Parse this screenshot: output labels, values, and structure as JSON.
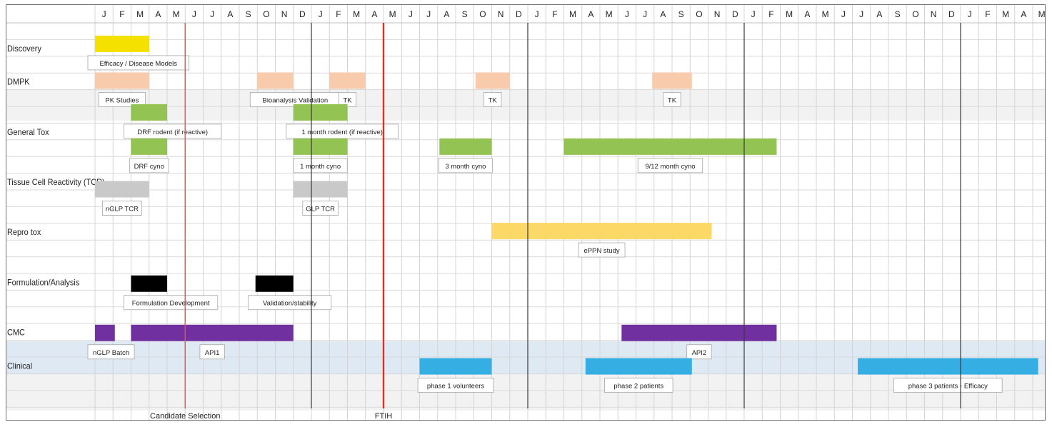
{
  "months": [
    "J",
    "F",
    "M",
    "A",
    "M",
    "J",
    "J",
    "A",
    "S",
    "O",
    "N",
    "D",
    "J",
    "F",
    "M",
    "A",
    "M",
    "J",
    "J",
    "A",
    "S",
    "O",
    "N",
    "D",
    "J",
    "F",
    "M",
    "A",
    "M",
    "J",
    "J",
    "A",
    "S",
    "O",
    "N",
    "D",
    "J",
    "F",
    "M",
    "A",
    "M",
    "J",
    "J",
    "A",
    "S",
    "O",
    "N",
    "D",
    "J",
    "F",
    "M",
    "A",
    "M",
    "J",
    "J",
    "A"
  ],
  "rows": [
    {
      "label": "Discovery"
    },
    {
      "label": "DMPK"
    },
    {
      "label": "General Tox"
    },
    {
      "label": "Tissue Cell Reactivity (TCR)"
    },
    {
      "label": "Repro tox"
    },
    {
      "label": "Formulation/Analysis"
    },
    {
      "label": "CMC"
    },
    {
      "label": "Clinical"
    }
  ],
  "bands": [
    {
      "row": "DMPK",
      "color": "#f2f2f2"
    },
    {
      "row": "CMC",
      "color": "#dfe9f3"
    },
    {
      "row": "Clinical",
      "color": "#f2f2f2"
    }
  ],
  "tasks": [
    {
      "row": "Discovery",
      "start": 0,
      "end": 3,
      "color": "#f5e100",
      "label": "Efficacy / Disease Models"
    },
    {
      "row": "DMPK",
      "start": 0,
      "end": 3,
      "color": "#f8cbad",
      "label": "PK Studies"
    },
    {
      "row": "DMPK",
      "start": 9,
      "end": 11,
      "color": "#f8cbad",
      "label": "Bioanalysis Validation"
    },
    {
      "row": "DMPK",
      "start": 13,
      "end": 15,
      "color": "#f8cbad",
      "label": "TK"
    },
    {
      "row": "DMPK",
      "start": 21.1,
      "end": 23,
      "color": "#f8cbad",
      "label": "TK"
    },
    {
      "row": "DMPK",
      "start": 30.9,
      "end": 33.1,
      "color": "#f8cbad",
      "label": "TK"
    },
    {
      "row": "General Tox",
      "start": 2,
      "end": 4,
      "color": "#92c353",
      "label": "DRF rodent (if reactive)"
    },
    {
      "row": "General Tox",
      "start": 11,
      "end": 14,
      "color": "#92c353",
      "label": "1 month rodent (if reactive)"
    },
    {
      "row": "General Tox",
      "start": 2,
      "end": 4,
      "color": "#92c353",
      "label": "DRF cyno"
    },
    {
      "row": "General Tox",
      "start": 11,
      "end": 14,
      "color": "#92c353",
      "label": "1 month cyno"
    },
    {
      "row": "General Tox",
      "start": 19.1,
      "end": 22,
      "color": "#92c353",
      "label": "3 month cyno"
    },
    {
      "row": "General Tox",
      "start": 26,
      "end": 37.8,
      "color": "#92c353",
      "label": "9/12 month cyno"
    },
    {
      "row": "Tissue Cell Reactivity (TCR)",
      "start": 0,
      "end": 3,
      "color": "#c9c9c9",
      "label": "nGLP TCR"
    },
    {
      "row": "Tissue Cell Reactivity (TCR)",
      "start": 11,
      "end": 14,
      "color": "#c9c9c9",
      "label": "GLP TCR"
    },
    {
      "row": "Repro tox",
      "start": 22,
      "end": 34.2,
      "color": "#fcd866",
      "label": "ePPN study"
    },
    {
      "row": "Formulation/Analysis",
      "start": 2,
      "end": 4,
      "color": "#000000",
      "label": "Formulation Development"
    },
    {
      "row": "Formulation/Analysis",
      "start": 8.9,
      "end": 11,
      "color": "#000000",
      "label": "Validation/stability"
    },
    {
      "row": "CMC",
      "start": 0,
      "end": 1.1,
      "color": "#7030a0",
      "label": "nGLP Batch"
    },
    {
      "row": "CMC",
      "start": 2,
      "end": 11,
      "color": "#7030a0",
      "label": "API1"
    },
    {
      "row": "CMC",
      "start": 29.2,
      "end": 37.8,
      "color": "#7030a0",
      "label": "API2"
    },
    {
      "row": "Clinical",
      "start": 18,
      "end": 22,
      "color": "#34aee3",
      "label": "phase 1 volunteers"
    },
    {
      "row": "Clinical",
      "start": 27.2,
      "end": 33.1,
      "color": "#34aee3",
      "label": "phase 2 patients"
    },
    {
      "row": "Clinical",
      "start": 42.3,
      "end": 52.3,
      "color": "#34aee3",
      "label": "phase 3 patients - Efficacy"
    }
  ],
  "milestones": [
    {
      "label": "Candidate Selection",
      "at": 5,
      "color": "#e0554a"
    },
    {
      "label": "FTIH",
      "at": 16,
      "color": "#e0301e"
    }
  ],
  "year_lines": [
    12,
    24,
    36,
    48
  ]
}
